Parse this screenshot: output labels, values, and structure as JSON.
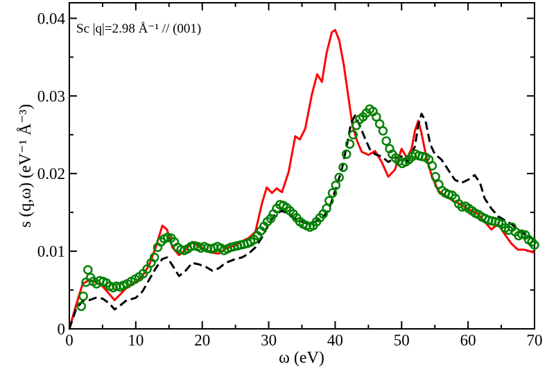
{
  "chart_data": {
    "type": "line",
    "title": "",
    "xlabel": "ω  (eV)",
    "ylabel": "s (q,ω)  (eV⁻¹ Å⁻³)",
    "annotation": "Sc  |q|=2.98 Å⁻¹ // (001)",
    "xlim": [
      0,
      70
    ],
    "ylim": [
      0,
      0.042
    ],
    "xticks": [
      0,
      10,
      20,
      30,
      40,
      50,
      60,
      70
    ],
    "xtick_labels": [
      "0",
      "10",
      "20",
      "30",
      "40",
      "50",
      "60",
      "70"
    ],
    "yticks": [
      0,
      0.01,
      0.02,
      0.03,
      0.04
    ],
    "ytick_labels": [
      "0",
      "0.01",
      "0.02",
      "0.03",
      "0.04"
    ],
    "grid": false,
    "legend": "none",
    "series": [
      {
        "style": "solid",
        "color": "#ff0000",
        "points": [
          [
            0,
            0
          ],
          [
            0.5,
            0.0015
          ],
          [
            1,
            0.003
          ],
          [
            2,
            0.0058
          ],
          [
            3,
            0.0063
          ],
          [
            4,
            0.006
          ],
          [
            5,
            0.0055
          ],
          [
            6,
            0.0045
          ],
          [
            6.8,
            0.0037
          ],
          [
            7.5,
            0.0043
          ],
          [
            8.5,
            0.0052
          ],
          [
            10,
            0.006
          ],
          [
            11,
            0.0068
          ],
          [
            12,
            0.0082
          ],
          [
            13,
            0.0105
          ],
          [
            14,
            0.0133
          ],
          [
            14.7,
            0.0128
          ],
          [
            15.5,
            0.0105
          ],
          [
            16.5,
            0.0095
          ],
          [
            17.5,
            0.0102
          ],
          [
            18.5,
            0.0112
          ],
          [
            19.5,
            0.0106
          ],
          [
            20.5,
            0.0102
          ],
          [
            21.5,
            0.0098
          ],
          [
            22.5,
            0.0097
          ],
          [
            23.5,
            0.0103
          ],
          [
            25,
            0.0108
          ],
          [
            26,
            0.0113
          ],
          [
            27,
            0.0117
          ],
          [
            28,
            0.0125
          ],
          [
            29,
            0.0162
          ],
          [
            29.7,
            0.0182
          ],
          [
            30.5,
            0.0175
          ],
          [
            31.2,
            0.0181
          ],
          [
            32,
            0.0176
          ],
          [
            33,
            0.0202
          ],
          [
            34,
            0.0248
          ],
          [
            34.7,
            0.0244
          ],
          [
            35.5,
            0.0258
          ],
          [
            36.5,
            0.0302
          ],
          [
            37.3,
            0.0328
          ],
          [
            38,
            0.0318
          ],
          [
            38.7,
            0.0355
          ],
          [
            39.5,
            0.0382
          ],
          [
            40,
            0.0385
          ],
          [
            40.6,
            0.0372
          ],
          [
            41.3,
            0.034
          ],
          [
            42,
            0.0298
          ],
          [
            42.6,
            0.0262
          ],
          [
            43.3,
            0.0242
          ],
          [
            44,
            0.0228
          ],
          [
            45,
            0.0224
          ],
          [
            46,
            0.0229
          ],
          [
            47,
            0.0215
          ],
          [
            48,
            0.0196
          ],
          [
            49,
            0.0205
          ],
          [
            50,
            0.0232
          ],
          [
            50.8,
            0.022
          ],
          [
            51.5,
            0.0232
          ],
          [
            52,
            0.0255
          ],
          [
            52.5,
            0.0268
          ],
          [
            53,
            0.0252
          ],
          [
            53.7,
            0.0222
          ],
          [
            54.5,
            0.0198
          ],
          [
            55.5,
            0.0178
          ],
          [
            56.5,
            0.0172
          ],
          [
            57.5,
            0.0166
          ],
          [
            58.5,
            0.0162
          ],
          [
            59.5,
            0.0157
          ],
          [
            60.5,
            0.0152
          ],
          [
            61.5,
            0.0148
          ],
          [
            62.5,
            0.0138
          ],
          [
            63.5,
            0.0128
          ],
          [
            64.5,
            0.0135
          ],
          [
            65.5,
            0.0122
          ],
          [
            66.5,
            0.011
          ],
          [
            67.5,
            0.0102
          ],
          [
            68.5,
            0.0102
          ],
          [
            70,
            0.0098
          ]
        ]
      },
      {
        "style": "dashed",
        "color": "#000000",
        "points": [
          [
            0,
            0
          ],
          [
            1,
            0.0025
          ],
          [
            2,
            0.0036
          ],
          [
            3,
            0.0037
          ],
          [
            4,
            0.004
          ],
          [
            5,
            0.0039
          ],
          [
            6,
            0.0033
          ],
          [
            6.8,
            0.0025
          ],
          [
            7.5,
            0.0029
          ],
          [
            8.5,
            0.0036
          ],
          [
            10,
            0.004
          ],
          [
            11,
            0.0048
          ],
          [
            12,
            0.0063
          ],
          [
            13,
            0.0078
          ],
          [
            14,
            0.009
          ],
          [
            14.7,
            0.0092
          ],
          [
            15.5,
            0.0082
          ],
          [
            16.5,
            0.0068
          ],
          [
            17.5,
            0.0075
          ],
          [
            18.5,
            0.0085
          ],
          [
            19.5,
            0.0083
          ],
          [
            20.5,
            0.008
          ],
          [
            21.5,
            0.0075
          ],
          [
            22.5,
            0.0078
          ],
          [
            23.5,
            0.0085
          ],
          [
            25,
            0.009
          ],
          [
            26,
            0.0092
          ],
          [
            27,
            0.0097
          ],
          [
            28,
            0.0105
          ],
          [
            29,
            0.0118
          ],
          [
            30,
            0.0135
          ],
          [
            31,
            0.0148
          ],
          [
            32,
            0.0152
          ],
          [
            33,
            0.0148
          ],
          [
            34,
            0.0142
          ],
          [
            35,
            0.0138
          ],
          [
            36,
            0.0135
          ],
          [
            37,
            0.0138
          ],
          [
            38,
            0.0143
          ],
          [
            39,
            0.0152
          ],
          [
            40,
            0.0178
          ],
          [
            41,
            0.0205
          ],
          [
            41.8,
            0.0238
          ],
          [
            42.4,
            0.0265
          ],
          [
            43,
            0.0275
          ],
          [
            43.7,
            0.0262
          ],
          [
            44.5,
            0.0245
          ],
          [
            45.3,
            0.023
          ],
          [
            46,
            0.0225
          ],
          [
            47,
            0.0222
          ],
          [
            48,
            0.0215
          ],
          [
            49,
            0.022
          ],
          [
            50,
            0.0222
          ],
          [
            51,
            0.0215
          ],
          [
            52,
            0.0235
          ],
          [
            52.5,
            0.0262
          ],
          [
            53,
            0.0277
          ],
          [
            53.6,
            0.0268
          ],
          [
            54.3,
            0.0238
          ],
          [
            55,
            0.0225
          ],
          [
            56,
            0.0218
          ],
          [
            57,
            0.0205
          ],
          [
            58,
            0.0192
          ],
          [
            59,
            0.0188
          ],
          [
            60,
            0.0192
          ],
          [
            61,
            0.0198
          ],
          [
            61.8,
            0.0188
          ],
          [
            62.5,
            0.0168
          ],
          [
            63.5,
            0.0155
          ],
          [
            64.5,
            0.0145
          ],
          [
            65.5,
            0.014
          ],
          [
            66.5,
            0.0135
          ],
          [
            67.5,
            0.0128
          ],
          [
            68.5,
            0.0122
          ],
          [
            70,
            0.0115
          ]
        ]
      },
      {
        "style": "open-circles",
        "color": "#008000",
        "points": [
          [
            1.8,
            0.0029
          ],
          [
            2.1,
            0.0042
          ],
          [
            2.5,
            0.006
          ],
          [
            2.8,
            0.0076
          ],
          [
            3.2,
            0.0066
          ],
          [
            3.6,
            0.0061
          ],
          [
            4.1,
            0.0058
          ],
          [
            4.6,
            0.0062
          ],
          [
            5.1,
            0.0061
          ],
          [
            5.6,
            0.0059
          ],
          [
            6.1,
            0.0055
          ],
          [
            6.6,
            0.0053
          ],
          [
            7.1,
            0.0055
          ],
          [
            7.6,
            0.0054
          ],
          [
            8.1,
            0.0056
          ],
          [
            8.7,
            0.0058
          ],
          [
            9.3,
            0.0061
          ],
          [
            9.9,
            0.0064
          ],
          [
            10.5,
            0.0067
          ],
          [
            11.1,
            0.0071
          ],
          [
            11.7,
            0.0077
          ],
          [
            12.3,
            0.0085
          ],
          [
            12.8,
            0.0092
          ],
          [
            13.3,
            0.0105
          ],
          [
            13.8,
            0.0112
          ],
          [
            14.3,
            0.0116
          ],
          [
            14.8,
            0.0118
          ],
          [
            15.3,
            0.0117
          ],
          [
            15.8,
            0.0112
          ],
          [
            16.3,
            0.0105
          ],
          [
            16.8,
            0.0102
          ],
          [
            17.3,
            0.0101
          ],
          [
            17.8,
            0.0103
          ],
          [
            18.3,
            0.0106
          ],
          [
            18.8,
            0.0107
          ],
          [
            19.3,
            0.0106
          ],
          [
            19.8,
            0.0104
          ],
          [
            20.3,
            0.0106
          ],
          [
            20.8,
            0.0104
          ],
          [
            21.3,
            0.0103
          ],
          [
            21.8,
            0.0104
          ],
          [
            22.3,
            0.0106
          ],
          [
            22.8,
            0.0104
          ],
          [
            23.3,
            0.0101
          ],
          [
            23.8,
            0.0103
          ],
          [
            24.3,
            0.0105
          ],
          [
            24.8,
            0.0106
          ],
          [
            25.3,
            0.0107
          ],
          [
            25.8,
            0.0108
          ],
          [
            26.3,
            0.0109
          ],
          [
            26.8,
            0.011
          ],
          [
            27.3,
            0.0112
          ],
          [
            27.8,
            0.0115
          ],
          [
            28.3,
            0.012
          ],
          [
            28.8,
            0.0126
          ],
          [
            29.3,
            0.0132
          ],
          [
            29.8,
            0.0138
          ],
          [
            30.3,
            0.0142
          ],
          [
            30.7,
            0.0148
          ],
          [
            31.2,
            0.0155
          ],
          [
            31.7,
            0.016
          ],
          [
            32.2,
            0.0159
          ],
          [
            32.7,
            0.0156
          ],
          [
            33.2,
            0.0152
          ],
          [
            33.7,
            0.0148
          ],
          [
            34.2,
            0.0143
          ],
          [
            34.7,
            0.0138
          ],
          [
            35.2,
            0.0135
          ],
          [
            35.7,
            0.0133
          ],
          [
            36.2,
            0.0131
          ],
          [
            36.7,
            0.0133
          ],
          [
            37.2,
            0.0138
          ],
          [
            37.7,
            0.0143
          ],
          [
            38.2,
            0.0148
          ],
          [
            38.7,
            0.0155
          ],
          [
            39.1,
            0.0165
          ],
          [
            39.6,
            0.0175
          ],
          [
            40.1,
            0.0185
          ],
          [
            40.6,
            0.0195
          ],
          [
            41.2,
            0.0208
          ],
          [
            41.7,
            0.0225
          ],
          [
            42.2,
            0.0238
          ],
          [
            42.7,
            0.025
          ],
          [
            43.2,
            0.0262
          ],
          [
            43.7,
            0.027
          ],
          [
            44.2,
            0.0273
          ],
          [
            44.7,
            0.0278
          ],
          [
            45.2,
            0.0283
          ],
          [
            45.7,
            0.028
          ],
          [
            46.2,
            0.0273
          ],
          [
            46.7,
            0.0264
          ],
          [
            47.2,
            0.0255
          ],
          [
            47.7,
            0.0242
          ],
          [
            48.2,
            0.0232
          ],
          [
            48.6,
            0.0225
          ],
          [
            49.1,
            0.022
          ],
          [
            49.6,
            0.0216
          ],
          [
            50.1,
            0.0213
          ],
          [
            50.6,
            0.0215
          ],
          [
            51.1,
            0.0218
          ],
          [
            51.6,
            0.0222
          ],
          [
            52.1,
            0.0225
          ],
          [
            52.6,
            0.0223
          ],
          [
            53.1,
            0.0222
          ],
          [
            53.6,
            0.0221
          ],
          [
            54.1,
            0.0218
          ],
          [
            54.6,
            0.021
          ],
          [
            55.1,
            0.0196
          ],
          [
            55.6,
            0.0186
          ],
          [
            56.1,
            0.0178
          ],
          [
            56.6,
            0.0175
          ],
          [
            57.1,
            0.0173
          ],
          [
            57.6,
            0.0172
          ],
          [
            58.1,
            0.0168
          ],
          [
            58.6,
            0.0161
          ],
          [
            59.1,
            0.0157
          ],
          [
            59.6,
            0.0158
          ],
          [
            60.1,
            0.0155
          ],
          [
            60.6,
            0.0152
          ],
          [
            61.1,
            0.0149
          ],
          [
            61.6,
            0.0147
          ],
          [
            62.1,
            0.0144
          ],
          [
            62.6,
            0.0142
          ],
          [
            63.1,
            0.014
          ],
          [
            63.6,
            0.0139
          ],
          [
            64.1,
            0.0138
          ],
          [
            64.6,
            0.0137
          ],
          [
            65.1,
            0.0135
          ],
          [
            65.6,
            0.013
          ],
          [
            66.1,
            0.0127
          ],
          [
            66.6,
            0.0131
          ],
          [
            67.1,
            0.0125
          ],
          [
            67.6,
            0.012
          ],
          [
            68.1,
            0.0122
          ],
          [
            68.6,
            0.0121
          ],
          [
            69.1,
            0.0115
          ],
          [
            69.6,
            0.0112
          ],
          [
            70.0,
            0.0108
          ]
        ]
      }
    ]
  }
}
